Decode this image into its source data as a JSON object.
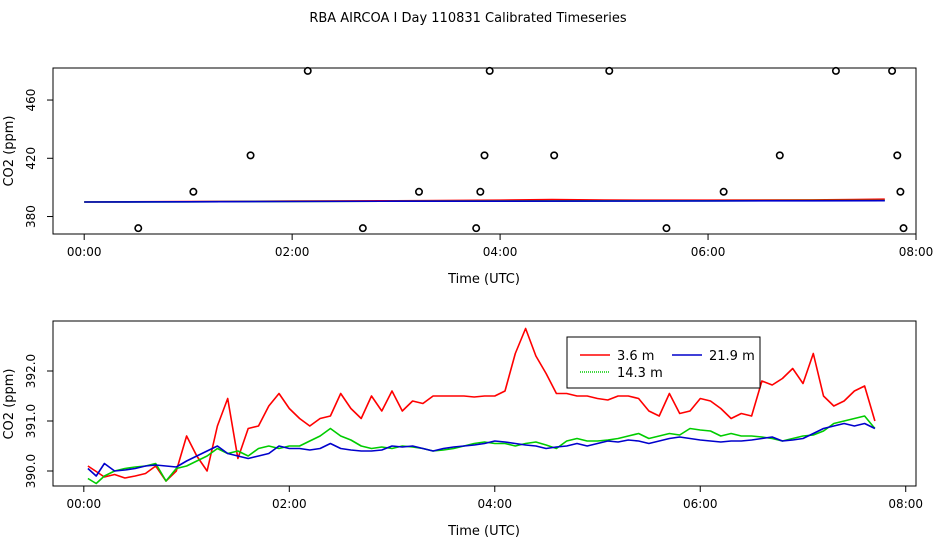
{
  "title": "RBA AIRCOA I  Day 110831  Calibrated Timeseries",
  "chart_data": [
    {
      "type": "scatter",
      "xlabel": "Time (UTC)",
      "ylabel": "CO2 (ppm)",
      "xlim": [
        -0.3,
        8.0
      ],
      "ylim": [
        368,
        482
      ],
      "x_ticks": [
        {
          "v": 0,
          "label": "00:00"
        },
        {
          "v": 2,
          "label": "02:00"
        },
        {
          "v": 4,
          "label": "04:00"
        },
        {
          "v": 6,
          "label": "06:00"
        },
        {
          "v": 8,
          "label": "08:00"
        }
      ],
      "y_ticks": [
        {
          "v": 380,
          "label": "380"
        },
        {
          "v": 420,
          "label": "420"
        },
        {
          "v": 460,
          "label": "460"
        }
      ],
      "calibration_points": [
        {
          "x": 0.52,
          "y": 372
        },
        {
          "x": 1.05,
          "y": 397
        },
        {
          "x": 1.6,
          "y": 422
        },
        {
          "x": 2.15,
          "y": 480
        },
        {
          "x": 2.68,
          "y": 372
        },
        {
          "x": 3.22,
          "y": 397
        },
        {
          "x": 3.77,
          "y": 372
        },
        {
          "x": 3.81,
          "y": 397
        },
        {
          "x": 3.85,
          "y": 422
        },
        {
          "x": 3.9,
          "y": 480
        },
        {
          "x": 4.52,
          "y": 422
        },
        {
          "x": 5.05,
          "y": 480
        },
        {
          "x": 5.6,
          "y": 372
        },
        {
          "x": 6.15,
          "y": 397
        },
        {
          "x": 6.69,
          "y": 422
        },
        {
          "x": 7.23,
          "y": 480
        },
        {
          "x": 7.77,
          "y": 480
        },
        {
          "x": 7.82,
          "y": 422
        },
        {
          "x": 7.85,
          "y": 397
        },
        {
          "x": 7.88,
          "y": 372
        }
      ],
      "series": [
        {
          "color": "#ff0000",
          "x": [
            0,
            1,
            2,
            3,
            4,
            4.5,
            5,
            6,
            7,
            7.4,
            7.7
          ],
          "y": [
            390,
            390.3,
            390.6,
            390.8,
            391.2,
            391.6,
            391.3,
            391.2,
            391.4,
            391.6,
            391.9
          ]
        },
        {
          "color": "#00cc00",
          "x": [
            0,
            1,
            2,
            3,
            4,
            5,
            6,
            7,
            7.7
          ],
          "y": [
            390,
            390.1,
            390.3,
            390.5,
            390.6,
            390.7,
            390.8,
            391,
            391
          ]
        },
        {
          "color": "#0000cc",
          "x": [
            0,
            1,
            2,
            3,
            4,
            5,
            6,
            7,
            7.7
          ],
          "y": [
            390,
            390.1,
            390.3,
            390.5,
            390.5,
            390.6,
            390.7,
            390.8,
            390.9
          ]
        }
      ]
    },
    {
      "type": "line",
      "xlabel": "Time (UTC)",
      "ylabel": "CO2 (ppm)",
      "xlim": [
        -0.3,
        8.1
      ],
      "ylim": [
        389.7,
        393.0
      ],
      "x_ticks": [
        {
          "v": 0,
          "label": "00:00"
        },
        {
          "v": 2,
          "label": "02:00"
        },
        {
          "v": 4,
          "label": "04:00"
        },
        {
          "v": 6,
          "label": "06:00"
        },
        {
          "v": 8,
          "label": "08:00"
        }
      ],
      "y_ticks": [
        {
          "v": 390.0,
          "label": "390.0"
        },
        {
          "v": 391.0,
          "label": "391.0"
        },
        {
          "v": 392.0,
          "label": "392.0"
        }
      ],
      "legend_position": "top-right",
      "series": [
        {
          "name": "3.6 m",
          "color": "#ff0000",
          "x": [
            0.04,
            0.12,
            0.2,
            0.3,
            0.4,
            0.5,
            0.6,
            0.7,
            0.8,
            0.9,
            1.0,
            1.1,
            1.2,
            1.3,
            1.4,
            1.5,
            1.6,
            1.7,
            1.8,
            1.9,
            2.0,
            2.1,
            2.2,
            2.3,
            2.4,
            2.5,
            2.6,
            2.7,
            2.8,
            2.9,
            3.0,
            3.1,
            3.2,
            3.3,
            3.4,
            3.5,
            3.6,
            3.7,
            3.8,
            3.9,
            4.0,
            4.1,
            4.2,
            4.3,
            4.4,
            4.5,
            4.6,
            4.7,
            4.8,
            4.9,
            5.0,
            5.1,
            5.2,
            5.3,
            5.4,
            5.5,
            5.6,
            5.7,
            5.8,
            5.9,
            6.0,
            6.1,
            6.2,
            6.3,
            6.4,
            6.5,
            6.6,
            6.7,
            6.8,
            6.9,
            7.0,
            7.1,
            7.2,
            7.3,
            7.4,
            7.5,
            7.6,
            7.7
          ],
          "y": [
            390.1,
            389.99,
            389.88,
            389.93,
            389.86,
            389.9,
            389.95,
            390.1,
            389.8,
            390.0,
            390.7,
            390.3,
            390.0,
            390.9,
            391.45,
            390.25,
            390.85,
            390.9,
            391.3,
            391.55,
            391.25,
            391.05,
            390.9,
            391.05,
            391.1,
            391.55,
            391.25,
            391.05,
            391.5,
            391.2,
            391.6,
            391.2,
            391.4,
            391.35,
            391.5,
            391.5,
            391.5,
            391.5,
            391.48,
            391.5,
            391.5,
            391.6,
            392.35,
            392.85,
            392.3,
            391.95,
            391.55,
            391.55,
            391.5,
            391.5,
            391.45,
            391.42,
            391.5,
            391.5,
            391.45,
            391.2,
            391.1,
            391.55,
            391.15,
            391.2,
            391.45,
            391.4,
            391.25,
            391.05,
            391.15,
            391.1,
            391.8,
            391.72,
            391.85,
            392.05,
            391.75,
            392.35,
            391.5,
            391.3,
            391.4,
            391.6,
            391.7,
            391.0
          ]
        },
        {
          "name": "14.3 m",
          "color": "#00cc00",
          "x": [
            0.04,
            0.12,
            0.2,
            0.3,
            0.4,
            0.5,
            0.6,
            0.7,
            0.8,
            0.9,
            1.0,
            1.1,
            1.2,
            1.3,
            1.4,
            1.5,
            1.6,
            1.7,
            1.8,
            1.9,
            2.0,
            2.1,
            2.2,
            2.3,
            2.4,
            2.5,
            2.6,
            2.7,
            2.8,
            2.9,
            3.0,
            3.1,
            3.2,
            3.3,
            3.4,
            3.5,
            3.6,
            3.7,
            3.8,
            3.9,
            4.0,
            4.1,
            4.2,
            4.3,
            4.4,
            4.5,
            4.6,
            4.7,
            4.8,
            4.9,
            5.0,
            5.1,
            5.2,
            5.3,
            5.4,
            5.5,
            5.6,
            5.7,
            5.8,
            5.9,
            6.0,
            6.1,
            6.2,
            6.3,
            6.4,
            6.5,
            6.6,
            6.7,
            6.8,
            6.9,
            7.0,
            7.1,
            7.2,
            7.3,
            7.4,
            7.5,
            7.6,
            7.7
          ],
          "y": [
            389.85,
            389.75,
            389.9,
            390.0,
            390.05,
            390.08,
            390.1,
            390.15,
            389.8,
            390.05,
            390.1,
            390.2,
            390.3,
            390.45,
            390.35,
            390.4,
            390.3,
            390.45,
            390.5,
            390.45,
            390.5,
            390.5,
            390.6,
            390.7,
            390.85,
            390.7,
            390.62,
            390.5,
            390.45,
            390.48,
            390.45,
            390.5,
            390.48,
            390.45,
            390.4,
            390.42,
            390.45,
            390.5,
            390.55,
            390.58,
            390.55,
            390.55,
            390.5,
            390.55,
            390.58,
            390.52,
            390.45,
            390.6,
            390.65,
            390.6,
            390.6,
            390.62,
            390.65,
            390.7,
            390.75,
            390.65,
            390.7,
            390.75,
            390.72,
            390.85,
            390.82,
            390.8,
            390.7,
            390.75,
            390.7,
            390.7,
            390.68,
            390.65,
            390.6,
            390.65,
            390.7,
            390.72,
            390.8,
            390.95,
            391.0,
            391.05,
            391.1,
            390.85
          ]
        },
        {
          "name": "21.9 m",
          "color": "#0000cc",
          "x": [
            0.04,
            0.12,
            0.2,
            0.3,
            0.4,
            0.5,
            0.6,
            0.7,
            0.8,
            0.9,
            1.0,
            1.1,
            1.2,
            1.3,
            1.4,
            1.5,
            1.6,
            1.7,
            1.8,
            1.9,
            2.0,
            2.1,
            2.2,
            2.3,
            2.4,
            2.5,
            2.6,
            2.7,
            2.8,
            2.9,
            3.0,
            3.1,
            3.2,
            3.3,
            3.4,
            3.5,
            3.6,
            3.7,
            3.8,
            3.9,
            4.0,
            4.1,
            4.2,
            4.3,
            4.4,
            4.5,
            4.6,
            4.7,
            4.8,
            4.9,
            5.0,
            5.1,
            5.2,
            5.3,
            5.4,
            5.5,
            5.6,
            5.7,
            5.8,
            5.9,
            6.0,
            6.1,
            6.2,
            6.3,
            6.4,
            6.5,
            6.6,
            6.7,
            6.8,
            6.9,
            7.0,
            7.1,
            7.2,
            7.3,
            7.4,
            7.5,
            7.6,
            7.7
          ],
          "y": [
            390.05,
            389.9,
            390.15,
            390.0,
            390.02,
            390.05,
            390.1,
            390.12,
            390.1,
            390.08,
            390.2,
            390.3,
            390.4,
            390.5,
            390.35,
            390.3,
            390.25,
            390.3,
            390.35,
            390.5,
            390.45,
            390.45,
            390.42,
            390.45,
            390.55,
            390.45,
            390.42,
            390.4,
            390.4,
            390.42,
            390.5,
            390.48,
            390.5,
            390.45,
            390.4,
            390.45,
            390.48,
            390.5,
            390.52,
            390.55,
            390.6,
            390.58,
            390.55,
            390.52,
            390.5,
            390.45,
            390.48,
            390.5,
            390.55,
            390.5,
            390.55,
            390.6,
            390.58,
            390.62,
            390.6,
            390.55,
            390.6,
            390.65,
            390.68,
            390.65,
            390.62,
            390.6,
            390.58,
            390.6,
            390.6,
            390.62,
            390.65,
            390.68,
            390.6,
            390.62,
            390.65,
            390.75,
            390.85,
            390.9,
            390.95,
            390.9,
            390.95,
            390.85
          ]
        }
      ]
    }
  ]
}
